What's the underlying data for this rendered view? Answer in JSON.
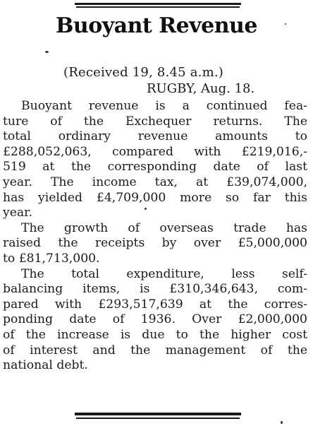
{
  "article": {
    "headline": "Buoyant Revenue",
    "dateline": "(Received 19, 8.45 a.m.)",
    "placeline": "RUGBY, Aug. 18.",
    "paragraphs": [
      {
        "lines": [
          "Buoyant revenue is a continued fea-",
          "ture of the Exchequer returns. The",
          "total ordinary revenue amounts to",
          "£288,052,063, compared with £219,016,-",
          "519 at the corresponding date of last",
          "year. The income tax, at £39,074,000,",
          "has yielded £4,709,000 more so far this",
          "year."
        ]
      },
      {
        "lines": [
          "The growth of overseas trade has",
          "raised the receipts by over £5,000,000",
          "to £81,713,000."
        ]
      },
      {
        "lines": [
          "The total expenditure, less self-",
          "balancing items, is £310,346,643, com-",
          "pared with £293,517,639 at the corres-",
          "ponding date of 1936. Over £2,000,000",
          "of the increase is due to the higher cost",
          "of interest and the management of the",
          "national debt."
        ]
      }
    ]
  }
}
